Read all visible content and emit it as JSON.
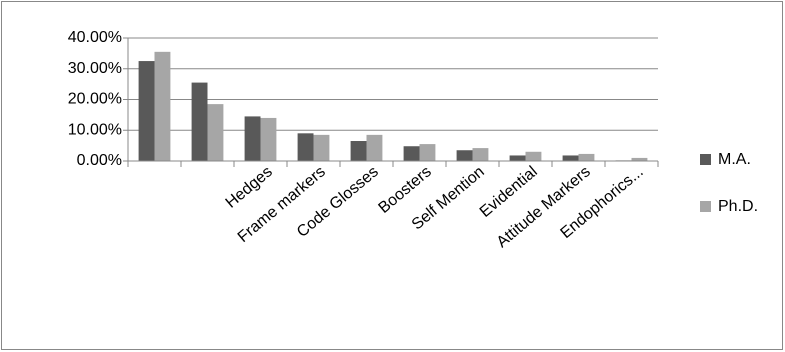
{
  "chart_data": {
    "type": "bar",
    "categories": [
      null,
      null,
      "Hedges",
      "Frame markers",
      "Code Glosses",
      "Boosters",
      "Self Mention",
      "Evidential",
      "Attitude Markers",
      "Endophorics..."
    ],
    "series": [
      {
        "name": "M.A.",
        "color": "#595959",
        "values": [
          32.5,
          25.5,
          14.5,
          9,
          6.5,
          4.8,
          3.5,
          1.8,
          1.8,
          0.2
        ]
      },
      {
        "name": "Ph.D.",
        "color": "#a6a6a6",
        "values": [
          35.5,
          18.5,
          14,
          8.5,
          8.5,
          5.5,
          4.2,
          3,
          2.3,
          1
        ]
      }
    ],
    "ylim": [
      0,
      40
    ],
    "yticks": [
      {
        "value": 0,
        "label": "0.00%"
      },
      {
        "value": 10,
        "label": "10.00%"
      },
      {
        "value": 20,
        "label": "20.00%"
      },
      {
        "value": 30,
        "label": "30.00%"
      },
      {
        "value": 40,
        "label": "40.00%"
      }
    ],
    "grid": true,
    "legend": "right"
  }
}
